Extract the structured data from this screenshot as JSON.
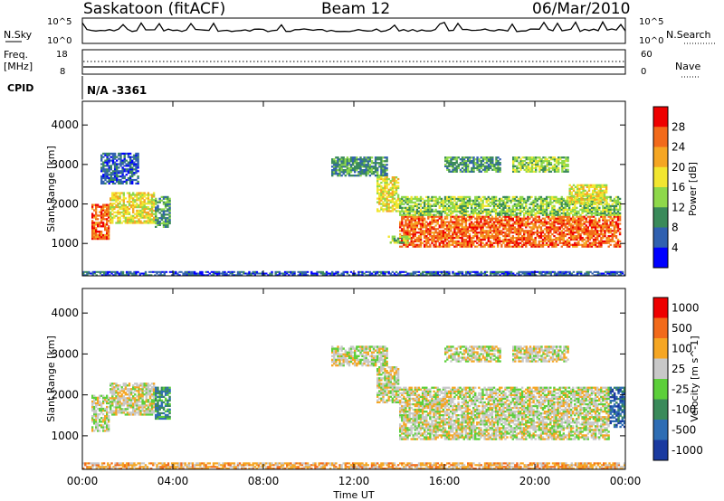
{
  "header": {
    "station": "Saskatoon (fitACF)",
    "beam": "Beam 12",
    "date": "06/Mar/2010"
  },
  "noise_panel": {
    "left_label": "N.Sky",
    "left_ticks": [
      "10^5",
      "10^0"
    ],
    "right_ticks": [
      "10^5",
      "10^0"
    ],
    "right_label": "N.Search"
  },
  "freq_panel": {
    "left_label_1": "Freq.",
    "left_label_2": "[MHz]",
    "left_ticks": [
      "18",
      "8"
    ],
    "right_ticks": [
      "60",
      "0"
    ],
    "right_label": "Nave"
  },
  "cpid_panel": {
    "label": "CPID",
    "value": "N/A -3361"
  },
  "chart_data": [
    {
      "type": "heatmap",
      "quantity": "Power",
      "ylabel": "Slant Range [km]",
      "ylim": [
        180,
        4600
      ],
      "y_ticks": [
        1000,
        2000,
        3000,
        4000
      ],
      "xlim_hours": [
        0,
        24
      ],
      "colorbar": {
        "label": "Power [dB]",
        "ticks": [
          "4",
          "8",
          "12",
          "16",
          "20",
          "24",
          "28"
        ],
        "colors": [
          "#0000ff",
          "#3060b0",
          "#3a8a5a",
          "#8ed84a",
          "#f2e630",
          "#f5a623",
          "#f26a1a",
          "#ee0000"
        ]
      },
      "regions": [
        {
          "t": [
            0.4,
            1.2
          ],
          "r": [
            1100,
            2000
          ],
          "level": 6
        },
        {
          "t": [
            1.2,
            3.2
          ],
          "r": [
            1500,
            2300
          ],
          "level": 4
        },
        {
          "t": [
            3.2,
            3.9
          ],
          "r": [
            1400,
            2200
          ],
          "level": 2
        },
        {
          "t": [
            0.8,
            2.5
          ],
          "r": [
            2500,
            3300
          ],
          "level": 1
        },
        {
          "t": [
            11.0,
            13.5
          ],
          "r": [
            2700,
            3200
          ],
          "level": 2
        },
        {
          "t": [
            13.0,
            14.0
          ],
          "r": [
            1800,
            2700
          ],
          "level": 4
        },
        {
          "t": [
            14.0,
            23.8
          ],
          "r": [
            900,
            1700
          ],
          "level": 6
        },
        {
          "t": [
            14.0,
            23.8
          ],
          "r": [
            1700,
            2200
          ],
          "level": 3
        },
        {
          "t": [
            21.5,
            23.2
          ],
          "r": [
            2000,
            2500
          ],
          "level": 4
        },
        {
          "t": [
            16.0,
            18.5
          ],
          "r": [
            2800,
            3200
          ],
          "level": 2
        },
        {
          "t": [
            19.0,
            21.5
          ],
          "r": [
            2800,
            3200
          ],
          "level": 3
        },
        {
          "t": [
            13.5,
            14.5
          ],
          "r": [
            1000,
            1200
          ],
          "level": 3
        },
        {
          "t": [
            0,
            24
          ],
          "r": [
            180,
            300
          ],
          "level": 1
        }
      ]
    },
    {
      "type": "heatmap",
      "quantity": "Velocity",
      "ylabel": "Slant Range [km]",
      "ylim": [
        180,
        4600
      ],
      "y_ticks": [
        1000,
        2000,
        3000,
        4000
      ],
      "xlim_hours": [
        0,
        24
      ],
      "x_ticks": [
        "00:00",
        "04:00",
        "08:00",
        "12:00",
        "16:00",
        "20:00",
        "00:00"
      ],
      "xlabel": "Time UT",
      "colorbar": {
        "label": "Velocity [m s^-1]",
        "ticks": [
          "1000",
          "500",
          "100",
          "25",
          "-25",
          "-100",
          "-500",
          "-1000"
        ],
        "colors": [
          "#1a3aa0",
          "#2e6db4",
          "#3a8a5a",
          "#5ccf3a",
          "#c8c8c8",
          "#f5a623",
          "#f26a1a",
          "#ee0000"
        ]
      },
      "regions": [
        {
          "t": [
            0.4,
            1.2
          ],
          "r": [
            1100,
            2000
          ],
          "level": 4
        },
        {
          "t": [
            1.2,
            3.2
          ],
          "r": [
            1500,
            2300
          ],
          "level": 4
        },
        {
          "t": [
            3.2,
            3.9
          ],
          "r": [
            1400,
            2200
          ],
          "level": 2
        },
        {
          "t": [
            11.0,
            13.5
          ],
          "r": [
            2700,
            3200
          ],
          "level": 4
        },
        {
          "t": [
            13.0,
            14.0
          ],
          "r": [
            1800,
            2700
          ],
          "level": 4
        },
        {
          "t": [
            14.0,
            23.3
          ],
          "r": [
            900,
            2200
          ],
          "level": 4
        },
        {
          "t": [
            23.3,
            24.0
          ],
          "r": [
            1200,
            2200
          ],
          "level": 1
        },
        {
          "t": [
            16.0,
            18.5
          ],
          "r": [
            2800,
            3200
          ],
          "level": 4
        },
        {
          "t": [
            19.0,
            21.5
          ],
          "r": [
            2800,
            3200
          ],
          "level": 4
        },
        {
          "t": [
            0,
            24
          ],
          "r": [
            180,
            350
          ],
          "level": 5
        }
      ]
    }
  ]
}
